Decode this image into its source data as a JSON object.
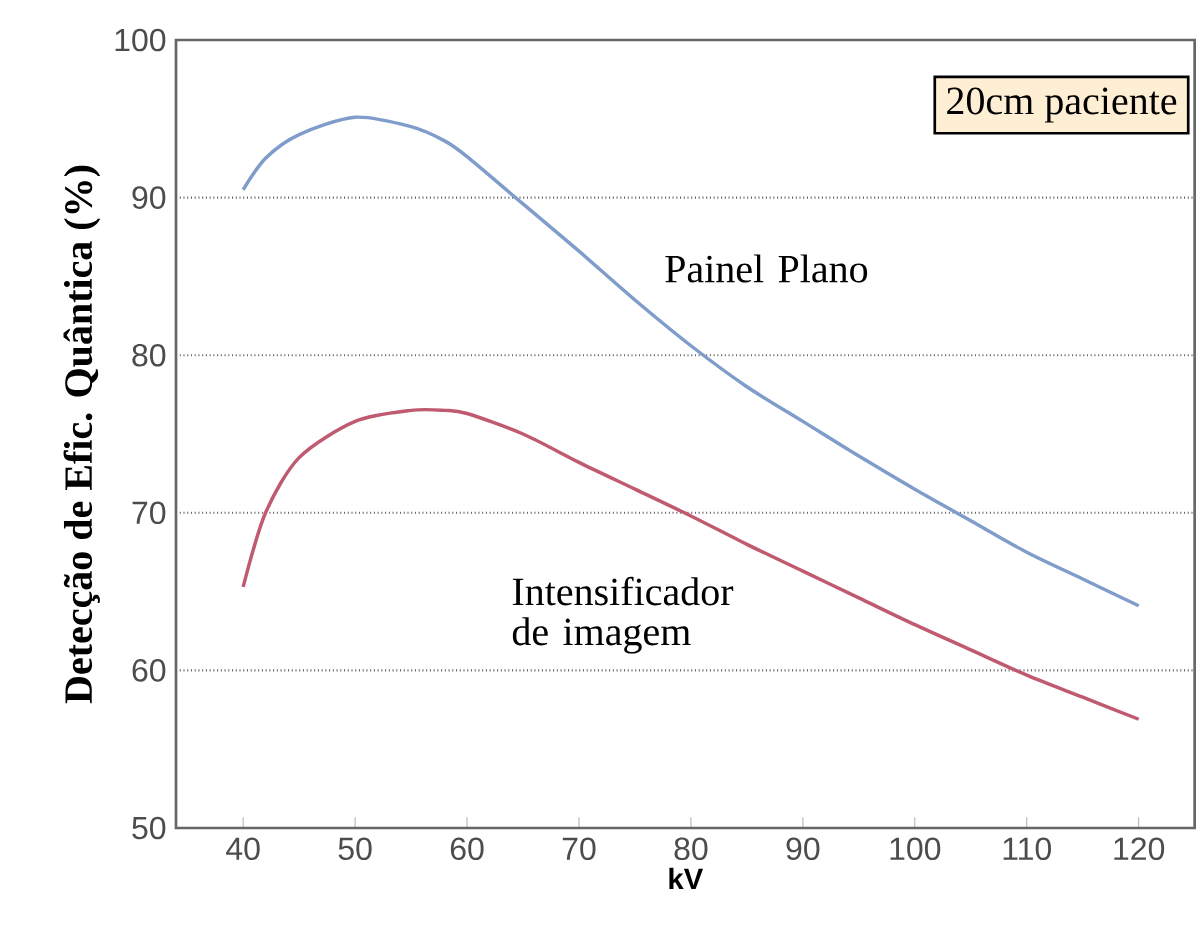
{
  "chart_data": {
    "type": "line",
    "xlabel": "kV",
    "ylabel": "Detecção de Efic. Quântica (%)",
    "x": [
      40,
      42,
      45,
      50,
      55,
      58,
      60,
      65,
      70,
      75,
      80,
      85,
      90,
      95,
      100,
      105,
      110,
      115,
      120
    ],
    "series": [
      {
        "name": "Painel Plano",
        "color": "#7f9ccb",
        "values": [
          90.5,
          92.5,
          94.0,
          95.1,
          94.5,
          93.6,
          92.6,
          89.6,
          86.6,
          83.5,
          80.6,
          78.0,
          75.8,
          73.6,
          71.5,
          69.5,
          67.5,
          65.8,
          64.1
        ]
      },
      {
        "name": "Intensificador de imagem",
        "color": "#c05a70",
        "values": [
          65.3,
          70.0,
          73.5,
          75.8,
          76.5,
          76.5,
          76.3,
          75.0,
          73.2,
          71.5,
          69.8,
          68.0,
          66.3,
          64.6,
          62.9,
          61.3,
          59.7,
          58.3,
          56.9
        ]
      }
    ],
    "xlim": [
      34,
      125
    ],
    "ylim": [
      50,
      100
    ],
    "xticks": [
      40,
      50,
      60,
      70,
      80,
      90,
      100,
      110,
      120
    ],
    "yticks": [
      50,
      60,
      70,
      80,
      90,
      100
    ],
    "grid": "y",
    "legend": false,
    "marker": "none",
    "line_style": "solid",
    "annotations": [
      "20cm paciente"
    ]
  }
}
